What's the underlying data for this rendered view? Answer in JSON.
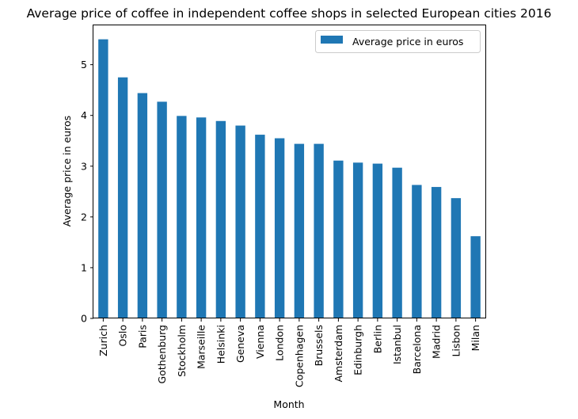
{
  "chart_data": {
    "type": "bar",
    "title": "Average price of coffee in independent coffee shops in selected European cities 2016",
    "xlabel": "Month",
    "ylabel": "Average price in euros",
    "ylim": [
      0,
      5.775
    ],
    "yticks": [
      0,
      1,
      2,
      3,
      4,
      5
    ],
    "grid": false,
    "legend_position": "top-right",
    "categories": [
      "Zurich",
      "Oslo",
      "Paris",
      "Gothenburg",
      "Stockholm",
      "Marseille",
      "Helsinki",
      "Geneva",
      "Vienna",
      "London",
      "Copenhagen",
      "Brussels",
      "Amsterdam",
      "Edinburgh",
      "Berlin",
      "Istanbul",
      "Barcelona",
      "Madrid",
      "Lisbon",
      "Milan"
    ],
    "series": [
      {
        "name": "Average price in euros",
        "color": "#1f77b4",
        "values": [
          5.5,
          4.75,
          4.44,
          4.27,
          3.99,
          3.96,
          3.89,
          3.8,
          3.62,
          3.55,
          3.44,
          3.44,
          3.11,
          3.07,
          3.05,
          2.97,
          2.63,
          2.59,
          2.37,
          1.62
        ]
      }
    ]
  }
}
